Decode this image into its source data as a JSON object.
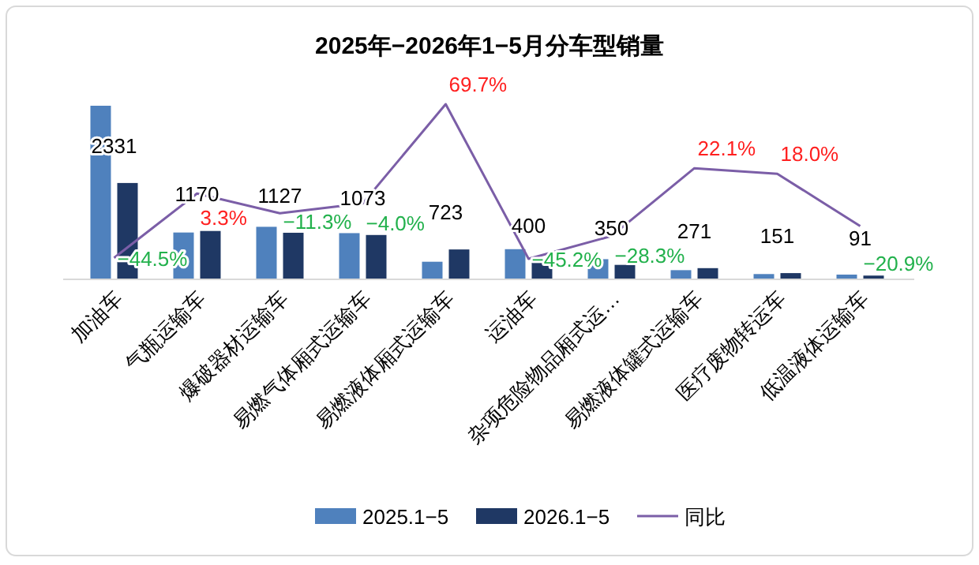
{
  "chart_data": {
    "type": "bar",
    "title": "2025年−2026年1−5月分车型销量",
    "categories": [
      "加油车",
      "气瓶运输车",
      "爆破器材运输车",
      "易燃气体厢式运输车",
      "易燃液体厢式运输车",
      "运油车",
      "杂项危险物品厢式运…",
      "易燃液体罐式运输车",
      "医疗废物转运车",
      "低温液体运输车"
    ],
    "series": [
      {
        "name": "2025.1−5",
        "color": "#4f81bd",
        "values": [
          4200,
          1133,
          1271,
          1118,
          426,
          730,
          488,
          222,
          128,
          115
        ]
      },
      {
        "name": "2026.1−5",
        "color": "#1f3864",
        "values": [
          2331,
          1170,
          1127,
          1073,
          723,
          400,
          350,
          271,
          151,
          91
        ],
        "value_labels": [
          "2331",
          "1170",
          "1127",
          "1073",
          "723",
          "400",
          "350",
          "271",
          "151",
          "91"
        ]
      },
      {
        "name": "同比",
        "type": "line",
        "axis": "y2",
        "color": "#7b5ea7",
        "values": [
          -44.5,
          3.3,
          -11.3,
          -4.0,
          69.7,
          -45.2,
          -28.3,
          22.1,
          18.0,
          -20.9
        ],
        "value_labels": [
          "−44.5%",
          "3.3%",
          "−11.3%",
          "−4.0%",
          "69.7%",
          "−45.2%",
          "−28.3%",
          "22.1%",
          "18.0%",
          "−20.9%"
        ]
      }
    ],
    "legend": "bottom"
  }
}
